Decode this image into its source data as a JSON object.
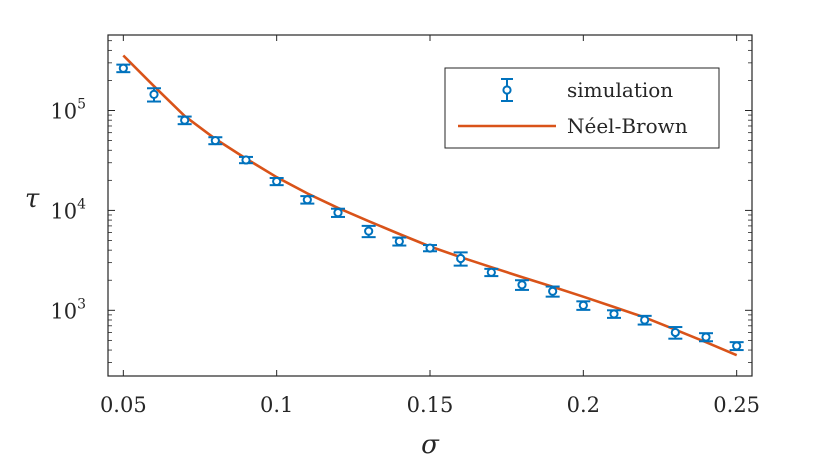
{
  "chart_data": {
    "type": "scatter",
    "xlabel": "σ",
    "ylabel": "τ",
    "xlim": [
      0.045,
      0.255
    ],
    "ylim": [
      220,
      570000
    ],
    "yscale": "log",
    "x_ticks": [
      "0.05",
      "0.1",
      "0.15",
      "0.2",
      "0.25"
    ],
    "x_tick_values": [
      0.05,
      0.1,
      0.15,
      0.2,
      0.25
    ],
    "y_ticks": [
      {
        "value": 1000,
        "base": "10",
        "exp": "3"
      },
      {
        "value": 10000,
        "base": "10",
        "exp": "4"
      },
      {
        "value": 100000,
        "base": "10",
        "exp": "5"
      }
    ],
    "grid": false,
    "legend": {
      "position": "top-right",
      "entries": [
        "simulation",
        "Néel-Brown"
      ]
    },
    "colors": {
      "simulation": "#0072BD",
      "neel_brown": "#D95319",
      "axes": "#262626"
    },
    "series": [
      {
        "name": "simulation",
        "style": "markers-errorbars",
        "x": [
          0.05,
          0.06,
          0.07,
          0.08,
          0.09,
          0.1,
          0.11,
          0.12,
          0.13,
          0.14,
          0.15,
          0.16,
          0.17,
          0.18,
          0.19,
          0.2,
          0.21,
          0.22,
          0.23,
          0.24,
          0.25
        ],
        "y": [
          265000,
          145000,
          80000,
          50000,
          32000,
          19500,
          12800,
          9500,
          6200,
          4900,
          4200,
          3300,
          2400,
          1800,
          1550,
          1120,
          920,
          800,
          600,
          540,
          440
        ],
        "error": [
          23000,
          22000,
          7000,
          4000,
          2300,
          1600,
          1100,
          900,
          800,
          450,
          300,
          500,
          200,
          200,
          180,
          110,
          80,
          80,
          80,
          50,
          40
        ]
      },
      {
        "name": "Néel-Brown",
        "style": "line",
        "x": [
          0.05,
          0.06,
          0.07,
          0.08,
          0.09,
          0.1,
          0.11,
          0.12,
          0.13,
          0.14,
          0.15,
          0.16,
          0.17,
          0.18,
          0.19,
          0.2,
          0.21,
          0.22,
          0.23,
          0.24,
          0.25
        ],
        "y": [
          355000,
          175000,
          88000,
          52000,
          33000,
          21500,
          14800,
          10600,
          7800,
          5800,
          4350,
          3400,
          2700,
          2150,
          1720,
          1370,
          1080,
          850,
          640,
          480,
          355
        ]
      }
    ]
  }
}
